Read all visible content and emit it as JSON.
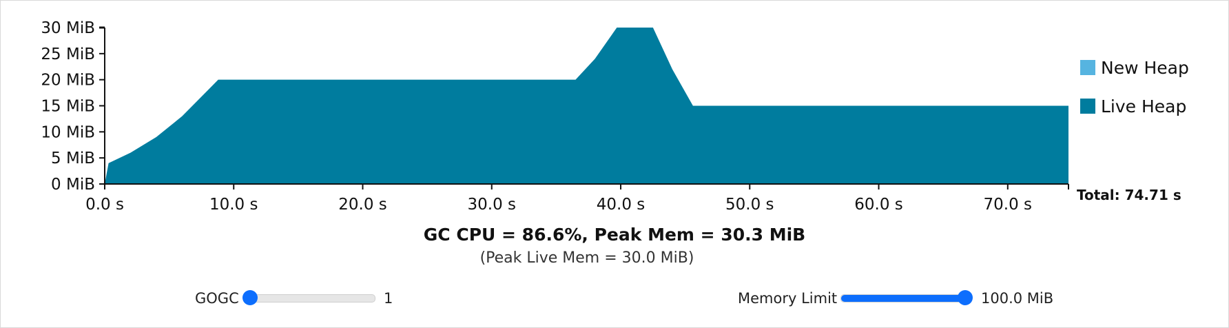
{
  "chart_data": {
    "type": "area",
    "x_tick_labels": [
      "0.0 s",
      "10.0 s",
      "20.0 s",
      "30.0 s",
      "40.0 s",
      "50.0 s",
      "60.0 s",
      "70.0 s"
    ],
    "x_ticks": [
      0,
      10,
      20,
      30,
      40,
      50,
      60,
      70
    ],
    "xlim": [
      0,
      74.71
    ],
    "y_tick_labels": [
      "0 MiB",
      "5 MiB",
      "10 MiB",
      "15 MiB",
      "20 MiB",
      "25 MiB",
      "30 MiB"
    ],
    "y_ticks": [
      0,
      5,
      10,
      15,
      20,
      25,
      30
    ],
    "ylim": [
      0,
      30
    ],
    "legend_position": "right",
    "series": [
      {
        "name": "New Heap",
        "color": "#56b4e0",
        "x": [],
        "y": []
      },
      {
        "name": "Live Heap",
        "color": "#007c9e",
        "x": [
          0,
          0.3,
          2,
          4,
          6,
          8.8,
          36.5,
          38,
          39.7,
          42.5,
          44,
          45.6,
          74.71
        ],
        "y": [
          0,
          4,
          6,
          9,
          13,
          20,
          20,
          24,
          30,
          30,
          22,
          15,
          15
        ]
      }
    ],
    "total_label": "Total: 74.71 s"
  },
  "summary": {
    "main": "GC CPU = 86.6%, Peak Mem = 30.3 MiB",
    "sub": "(Peak Live Mem = 30.0 MiB)"
  },
  "controls": {
    "gogc": {
      "label": "GOGC",
      "value_text": "1",
      "fraction": 0.0
    },
    "memory_limit": {
      "label": "Memory Limit",
      "value_text": "100.0 MiB",
      "fraction": 1.0
    },
    "accent_color": "#0d6efd"
  }
}
